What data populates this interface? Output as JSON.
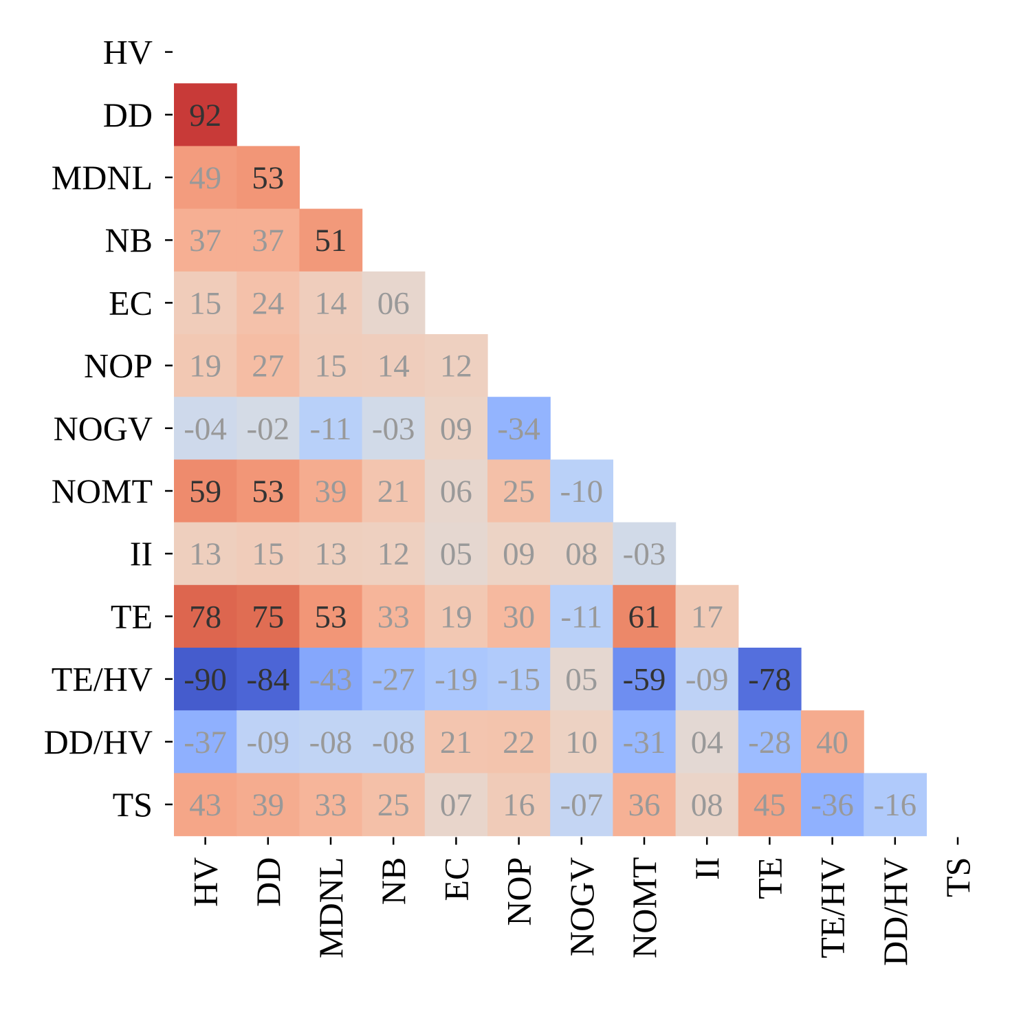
{
  "chart_data": {
    "type": "heatmap",
    "variables": [
      "HV",
      "DD",
      "MDNL",
      "NB",
      "EC",
      "NOP",
      "NOGV",
      "NOMT",
      "II",
      "TE",
      "TE/HV",
      "DD/HV",
      "TS"
    ],
    "matrix": [
      [],
      [
        92
      ],
      [
        49,
        53
      ],
      [
        37,
        37,
        51
      ],
      [
        15,
        24,
        14,
        6
      ],
      [
        19,
        27,
        15,
        14,
        12
      ],
      [
        -4,
        -2,
        -11,
        -3,
        9,
        -34
      ],
      [
        59,
        53,
        39,
        21,
        6,
        25,
        -10
      ],
      [
        13,
        15,
        13,
        12,
        5,
        9,
        8,
        -3
      ],
      [
        78,
        75,
        53,
        33,
        19,
        30,
        -11,
        61,
        17
      ],
      [
        -90,
        -84,
        -43,
        -27,
        -19,
        -15,
        5,
        -59,
        -9,
        -78
      ],
      [
        -37,
        -9,
        -8,
        -8,
        21,
        22,
        10,
        -31,
        4,
        -28,
        40
      ],
      [
        43,
        39,
        33,
        25,
        7,
        16,
        -7,
        36,
        8,
        45,
        -36,
        -16
      ]
    ],
    "labels": [
      [],
      [
        "92"
      ],
      [
        "49",
        "53"
      ],
      [
        "37",
        "37",
        "51"
      ],
      [
        "15",
        "24",
        "14",
        "06"
      ],
      [
        "19",
        "27",
        "15",
        "14",
        "12"
      ],
      [
        "-04",
        "-02",
        "-11",
        "-03",
        "09",
        "-34"
      ],
      [
        "59",
        "53",
        "39",
        "21",
        "06",
        "25",
        "-10"
      ],
      [
        "13",
        "15",
        "13",
        "12",
        "05",
        "09",
        "08",
        "-03"
      ],
      [
        "78",
        "75",
        "53",
        "33",
        "19",
        "30",
        "-11",
        "61",
        "17"
      ],
      [
        "-90",
        "-84",
        "-43",
        "-27",
        "-19",
        "-15",
        "05",
        "-59",
        "-09",
        "-78"
      ],
      [
        "-37",
        "-09",
        "-08",
        "-08",
        "21",
        "22",
        "10",
        "-31",
        "04",
        "-28",
        "40"
      ],
      [
        "43",
        "39",
        "33",
        "25",
        "07",
        "16",
        "-07",
        "36",
        "08",
        "45",
        "-36",
        "-16"
      ]
    ],
    "colormap": "coolwarm",
    "value_range": [
      -100,
      100
    ],
    "mask": "upper-triangle-including-diagonal",
    "colorbar": false,
    "grid": false,
    "label_colors": {
      "emphasis": "#333333",
      "muted": "#999999"
    },
    "emphasis_threshold": 50
  }
}
